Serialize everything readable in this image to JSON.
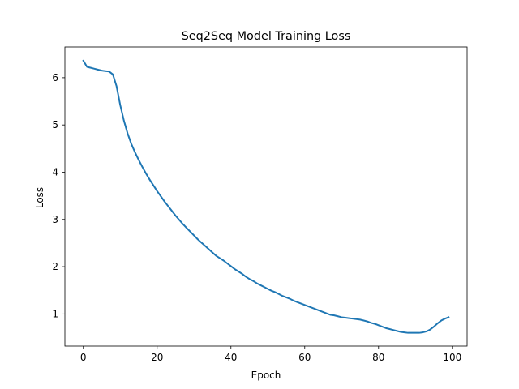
{
  "chart_data": {
    "type": "line",
    "title": "Seq2Seq Model Training Loss",
    "xlabel": "Epoch",
    "ylabel": "Loss",
    "xlim": [
      -5,
      104
    ],
    "ylim": [
      0.32,
      6.65
    ],
    "xticks": [
      0,
      20,
      40,
      60,
      80,
      100
    ],
    "yticks": [
      1,
      2,
      3,
      4,
      5,
      6
    ],
    "grid": false,
    "legend": "none",
    "series": [
      {
        "color": "#1f77b4",
        "x": [
          0,
          1,
          2,
          3,
          4,
          5,
          6,
          7,
          8,
          9,
          10,
          11,
          12,
          13,
          14,
          15,
          16,
          17,
          18,
          19,
          20,
          21,
          22,
          23,
          24,
          25,
          26,
          27,
          28,
          29,
          30,
          31,
          32,
          33,
          34,
          35,
          36,
          37,
          38,
          39,
          40,
          41,
          42,
          43,
          44,
          45,
          46,
          47,
          48,
          49,
          50,
          51,
          52,
          53,
          54,
          55,
          56,
          57,
          58,
          59,
          60,
          61,
          62,
          63,
          64,
          65,
          66,
          67,
          68,
          69,
          70,
          71,
          72,
          73,
          74,
          75,
          76,
          77,
          78,
          79,
          80,
          81,
          82,
          83,
          84,
          85,
          86,
          87,
          88,
          89,
          90,
          91,
          92,
          93,
          94,
          95,
          96,
          97,
          98,
          99
        ],
        "y": [
          6.36,
          6.23,
          6.21,
          6.19,
          6.17,
          6.15,
          6.14,
          6.13,
          6.07,
          5.82,
          5.42,
          5.09,
          4.82,
          4.6,
          4.42,
          4.26,
          4.11,
          3.97,
          3.84,
          3.72,
          3.6,
          3.49,
          3.38,
          3.28,
          3.18,
          3.08,
          2.99,
          2.9,
          2.82,
          2.74,
          2.66,
          2.58,
          2.51,
          2.44,
          2.37,
          2.3,
          2.23,
          2.18,
          2.13,
          2.07,
          2.01,
          1.95,
          1.9,
          1.85,
          1.79,
          1.74,
          1.7,
          1.65,
          1.61,
          1.57,
          1.53,
          1.49,
          1.46,
          1.42,
          1.38,
          1.35,
          1.32,
          1.28,
          1.25,
          1.22,
          1.19,
          1.16,
          1.13,
          1.1,
          1.07,
          1.04,
          1.01,
          0.98,
          0.97,
          0.95,
          0.93,
          0.92,
          0.91,
          0.9,
          0.89,
          0.88,
          0.86,
          0.84,
          0.81,
          0.79,
          0.76,
          0.73,
          0.7,
          0.68,
          0.66,
          0.64,
          0.62,
          0.61,
          0.6,
          0.6,
          0.6,
          0.6,
          0.61,
          0.63,
          0.67,
          0.73,
          0.8,
          0.86,
          0.9,
          0.93
        ]
      }
    ]
  }
}
